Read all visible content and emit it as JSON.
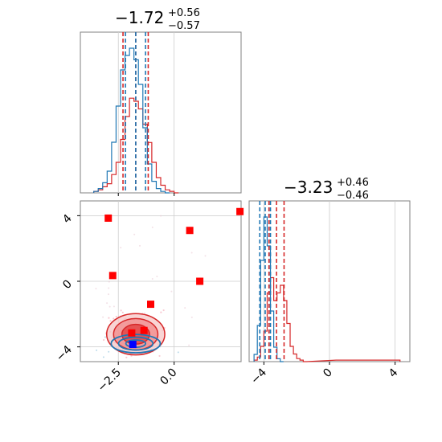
{
  "colors": {
    "blue": "#1f77b4",
    "red": "#d62728",
    "marker_red": "#ff0000",
    "marker_blue": "#0000ff",
    "grid": "#cccccc",
    "frame": "#808080"
  },
  "titles": {
    "p1": {
      "median": "−1.72",
      "plus": "+0.56",
      "minus": "−0.57"
    },
    "p2": {
      "median": "−3.23",
      "plus": "+0.46",
      "minus": "−0.46"
    }
  },
  "chart_data": {
    "type": "corner",
    "params": [
      {
        "range": [
          -4.2,
          3.0
        ],
        "quantiles": [
          -2.29,
          -1.72,
          -1.16
        ]
      },
      {
        "range": [
          -4.9,
          4.9
        ],
        "quantiles": [
          -3.69,
          -3.23,
          -2.77
        ]
      }
    ],
    "marginals": {
      "p1": {
        "blue_series": {
          "x": [
            -3.5,
            -3.3,
            -3.1,
            -2.9,
            -2.7,
            -2.5,
            -2.3,
            -2.1,
            -1.9,
            -1.7,
            -1.5,
            -1.3,
            -1.1,
            -0.9,
            -0.7,
            -0.5,
            -0.3
          ],
          "y": [
            0.01,
            0.03,
            0.07,
            0.15,
            0.35,
            0.6,
            0.85,
            0.95,
            1.0,
            0.92,
            0.75,
            0.45,
            0.2,
            0.08,
            0.03,
            0.01,
            0.0
          ]
        },
        "red_series": {
          "x": [
            -3.5,
            -3.3,
            -3.1,
            -2.9,
            -2.7,
            -2.5,
            -2.3,
            -2.1,
            -1.9,
            -1.7,
            -1.5,
            -1.3,
            -1.1,
            -0.9,
            -0.7,
            -0.5,
            -0.3,
            -0.1,
            0.1
          ],
          "y": [
            0.01,
            0.02,
            0.04,
            0.06,
            0.12,
            0.2,
            0.35,
            0.5,
            0.62,
            0.6,
            0.55,
            0.45,
            0.33,
            0.2,
            0.1,
            0.05,
            0.02,
            0.01,
            0.0
          ]
        },
        "blue_quantiles": [
          -2.18,
          -1.72,
          -1.28
        ],
        "red_quantiles": [
          -2.29,
          -1.72,
          -1.16
        ]
      },
      "p2": {
        "blue_series": {
          "x": [
            -4.5,
            -4.3,
            -4.1,
            -3.9,
            -3.7,
            -3.5,
            -3.3,
            -3.1,
            -2.9
          ],
          "y": [
            0.05,
            0.25,
            0.7,
            1.0,
            0.8,
            0.35,
            0.1,
            0.02,
            0.0
          ]
        },
        "red_series": {
          "x": [
            -4.5,
            -4.3,
            -4.1,
            -3.9,
            -3.7,
            -3.5,
            -3.3,
            -3.1,
            -2.9,
            -2.7,
            -2.5,
            -2.3,
            -2.1,
            -1.9,
            -1.7,
            -1.5,
            0.5,
            4.2
          ],
          "y": [
            0.01,
            0.03,
            0.1,
            0.2,
            0.45,
            0.55,
            0.4,
            0.45,
            0.5,
            0.4,
            0.25,
            0.1,
            0.05,
            0.02,
            0.01,
            0.0,
            0.01,
            0.01
          ]
        },
        "blue_quantiles": [
          -4.25,
          -3.92,
          -3.6
        ],
        "red_quantiles": [
          -3.69,
          -3.23,
          -2.77
        ]
      }
    },
    "scatter_markers": {
      "red_squares": [
        {
          "x": -2.95,
          "y": 3.85
        },
        {
          "x": -2.75,
          "y": 0.35
        },
        {
          "x": 0.7,
          "y": 3.1
        },
        {
          "x": 1.15,
          "y": 0.0
        },
        {
          "x": 2.95,
          "y": 4.25
        },
        {
          "x": -1.05,
          "y": -1.4
        },
        {
          "x": -1.9,
          "y": -3.15
        },
        {
          "x": -1.35,
          "y": -3.0
        }
      ],
      "blue_squares": [
        {
          "x": -1.85,
          "y": -3.85
        }
      ]
    },
    "contours": {
      "red": {
        "center": [
          -1.72,
          -3.23
        ],
        "sigma": [
          0.62,
          0.6
        ]
      },
      "blue": {
        "center": [
          -1.72,
          -3.8
        ],
        "sigma": [
          0.55,
          0.28
        ]
      }
    },
    "ticks": {
      "p1": [
        -2.5,
        0.0
      ],
      "p2": [
        -4,
        0,
        4
      ]
    },
    "tick_labels": {
      "p1": [
        "−2.5",
        "0.0"
      ],
      "p2": [
        "−4",
        "0",
        "4"
      ]
    },
    "grid": true
  }
}
